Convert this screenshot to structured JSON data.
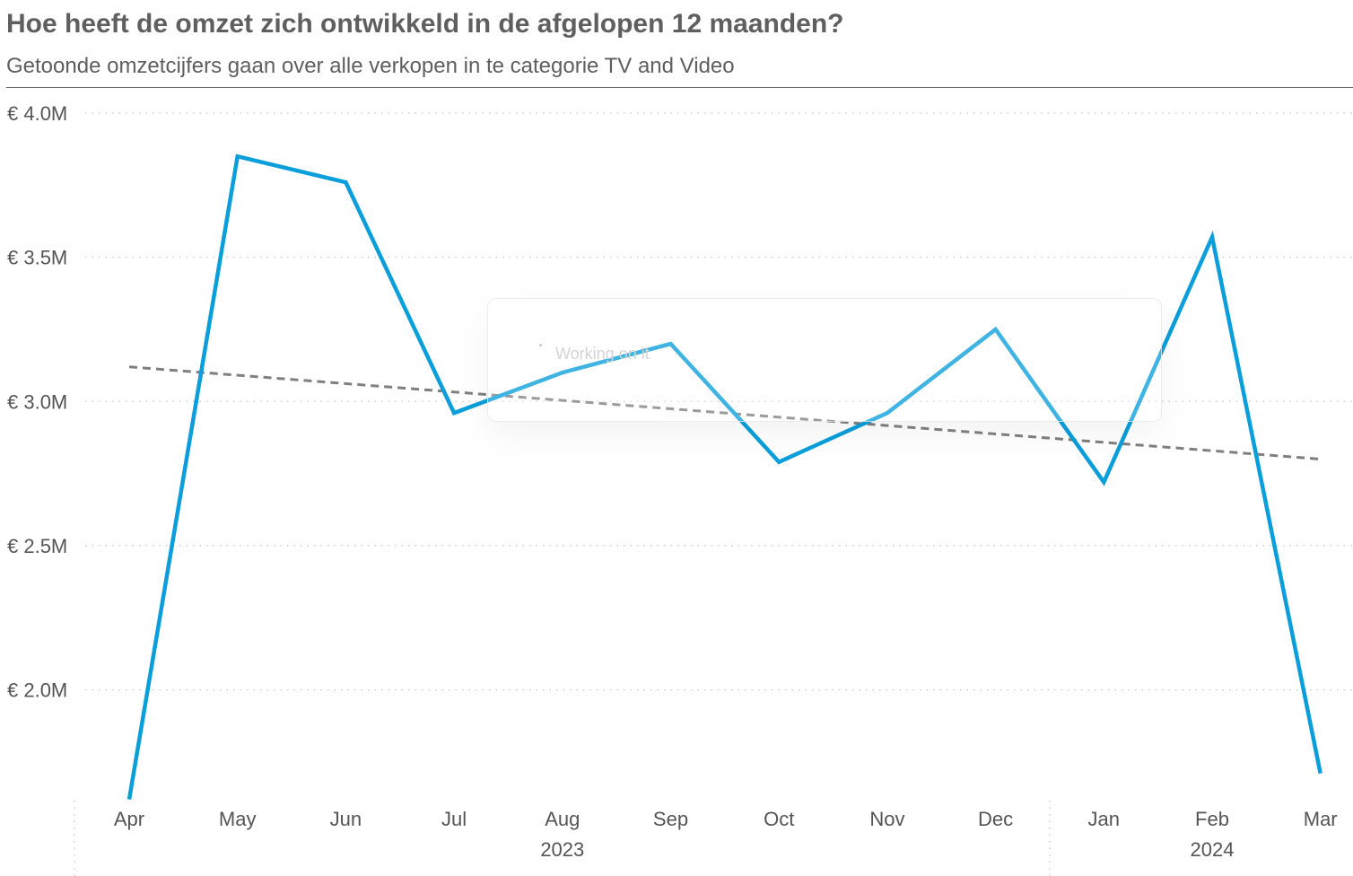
{
  "header": {
    "title": "Hoe heeft de omzet zich ontwikkeld in de afgelopen 12 maanden?",
    "subtitle": "Getoonde omzetcijfers gaan over alle verkopen in te categorie TV and Video"
  },
  "loading": {
    "text": "Working on it"
  },
  "chart_data": {
    "type": "line",
    "title": "",
    "xlabel": "",
    "ylabel": "",
    "categories": [
      "Apr",
      "May",
      "Jun",
      "Jul",
      "Aug",
      "Sep",
      "Oct",
      "Nov",
      "Dec",
      "Jan",
      "Feb",
      "Mar"
    ],
    "year_groups": [
      {
        "label": "2023",
        "from": "Apr",
        "to": "Dec"
      },
      {
        "label": "2024",
        "from": "Jan",
        "to": "Mar"
      }
    ],
    "series": [
      {
        "values": [
          1.62,
          3.85,
          3.76,
          2.96,
          3.1,
          3.2,
          2.79,
          2.96,
          3.25,
          2.72,
          3.57,
          1.71
        ],
        "color": "#0a9fda"
      }
    ],
    "trendline": {
      "start": 3.12,
      "end": 2.8,
      "color": "#7f7f7f",
      "style": "dashed"
    },
    "ylim": [
      1.65,
      4.0
    ],
    "yticks": [
      2.0,
      2.5,
      3.0,
      3.5,
      4.0
    ],
    "ytick_labels": [
      "€ 2.0M",
      "€ 2.5M",
      "€ 3.0M",
      "€ 3.5M",
      "€ 4.0M"
    ],
    "grid": true
  }
}
